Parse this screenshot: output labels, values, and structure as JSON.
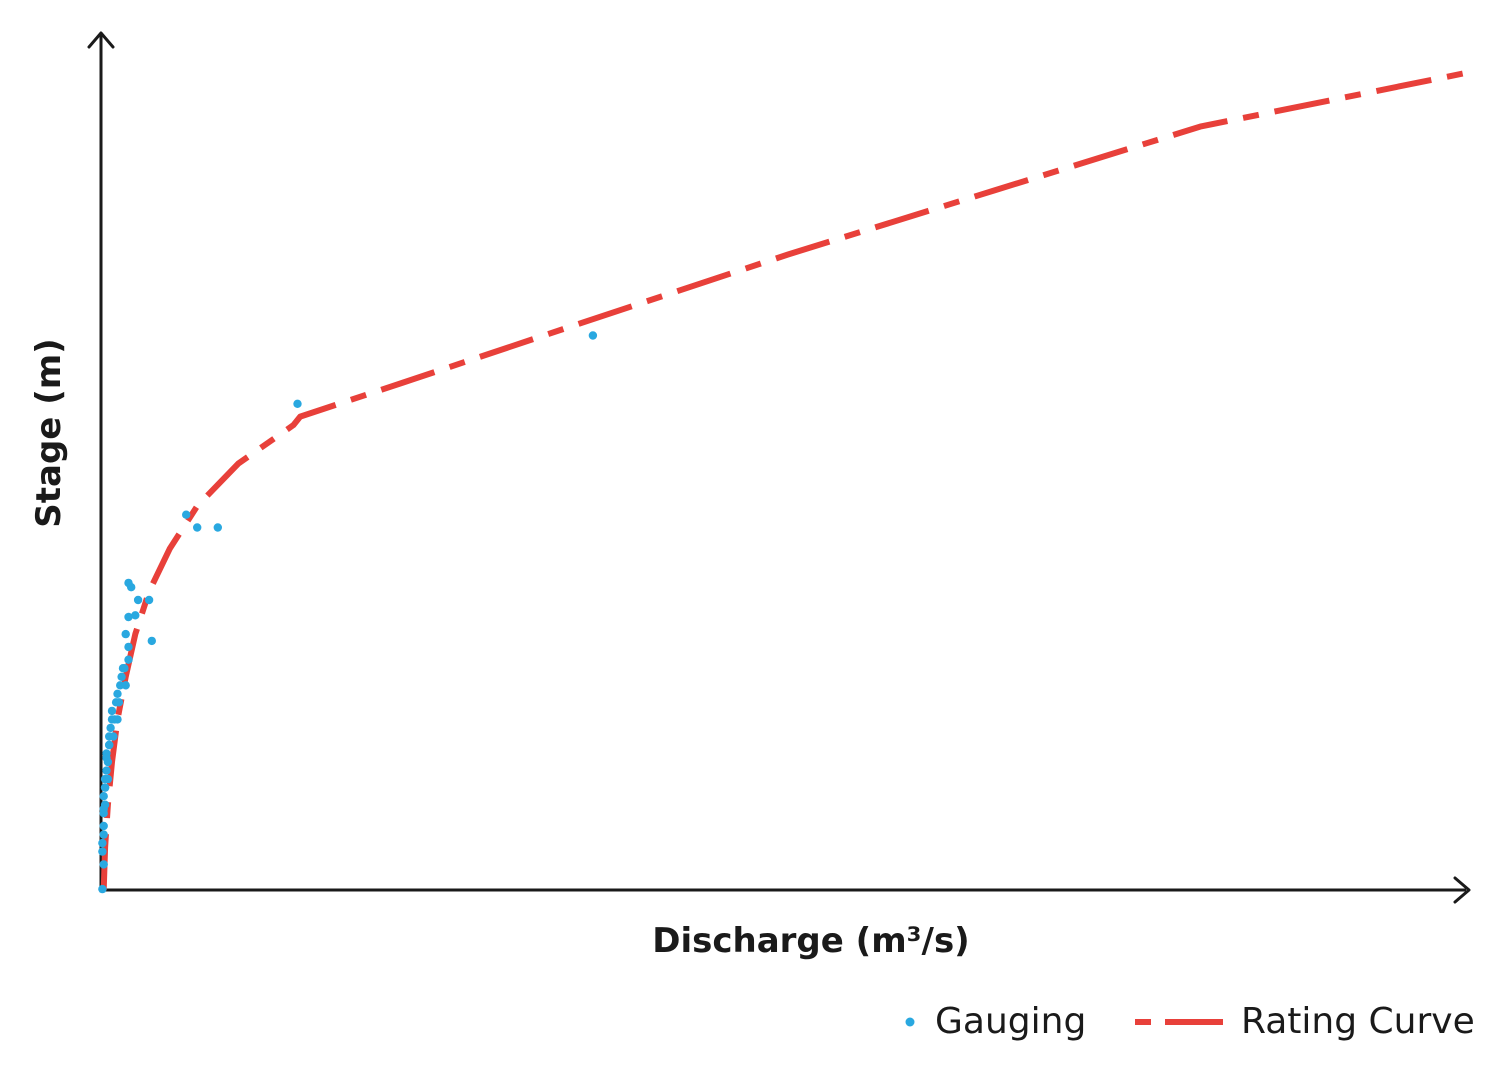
{
  "chart_data": {
    "type": "scatter",
    "xlabel": "Discharge (m³/s)",
    "ylabel": "Stage (m)",
    "xlim": [
      0,
      1000
    ],
    "ylim": [
      0,
      10
    ],
    "ticks_shown": false,
    "grid": false,
    "legend_position": "bottom-right",
    "colors": {
      "gauging": "#29a8e0",
      "rating_curve": "#e8403a",
      "axis": "#1a1a1a"
    },
    "series": [
      {
        "name": "Gauging",
        "type": "scatter",
        "points": [
          [
            1,
            0.01
          ],
          [
            2,
            0.3
          ],
          [
            1,
            0.45
          ],
          [
            1,
            0.55
          ],
          [
            2,
            0.65
          ],
          [
            2,
            0.75
          ],
          [
            2,
            0.9
          ],
          [
            3,
            1.0
          ],
          [
            2,
            1.1
          ],
          [
            3,
            1.2
          ],
          [
            3,
            1.3
          ],
          [
            4,
            1.4
          ],
          [
            5,
            1.5
          ],
          [
            4,
            1.6
          ],
          [
            6,
            1.7
          ],
          [
            6,
            1.8
          ],
          [
            7,
            1.9
          ],
          [
            8,
            2.0
          ],
          [
            8,
            2.1
          ],
          [
            10,
            2.0
          ],
          [
            11,
            2.2
          ],
          [
            12,
            2.3
          ],
          [
            14,
            2.4
          ],
          [
            13,
            2.2
          ],
          [
            15,
            2.5
          ],
          [
            16,
            2.6
          ],
          [
            18,
            2.4
          ],
          [
            20,
            2.7
          ],
          [
            12,
            2.0
          ],
          [
            9,
            1.8
          ],
          [
            5,
            1.3
          ],
          [
            3,
            1.2
          ],
          [
            2,
            0.95
          ],
          [
            4,
            1.55
          ],
          [
            6,
            1.7
          ],
          [
            17,
            2.6
          ],
          [
            20,
            2.85
          ],
          [
            18,
            3.0
          ],
          [
            20,
            3.2
          ],
          [
            25,
            3.22
          ],
          [
            27,
            3.4
          ],
          [
            22,
            3.55
          ],
          [
            20,
            3.6
          ],
          [
            35,
            3.4
          ],
          [
            37,
            2.92
          ],
          [
            62,
            4.4
          ],
          [
            70,
            4.25
          ],
          [
            85,
            4.25
          ],
          [
            143,
            5.7
          ],
          [
            358,
            6.5
          ]
        ]
      },
      {
        "name": "Rating Curve",
        "type": "line",
        "dash": "dash-dot",
        "points": [
          [
            2,
            0.0
          ],
          [
            3,
            0.5
          ],
          [
            5,
            1.0
          ],
          [
            8,
            1.5
          ],
          [
            12,
            2.0
          ],
          [
            18,
            2.5
          ],
          [
            25,
            3.0
          ],
          [
            35,
            3.5
          ],
          [
            50,
            4.0
          ],
          [
            70,
            4.5
          ],
          [
            100,
            5.0
          ],
          [
            140,
            5.45
          ],
          [
            145,
            5.55
          ],
          [
            220,
            5.95
          ],
          [
            350,
            6.65
          ],
          [
            500,
            7.45
          ],
          [
            650,
            8.2
          ],
          [
            800,
            8.95
          ],
          [
            1000,
            9.6
          ]
        ]
      }
    ]
  }
}
